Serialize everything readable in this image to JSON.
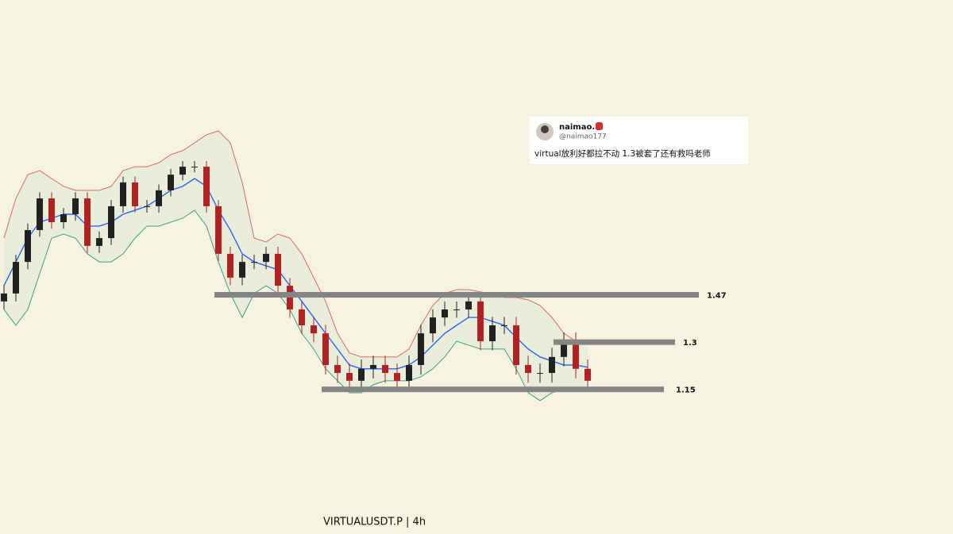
{
  "chart_data": {
    "type": "candlestick",
    "title": "VIRTUALUSDT.P | 4h",
    "log_scale": true,
    "ylim": [
      0.79,
      3.16
    ],
    "up_color": "#222222",
    "down_color": "#b22222",
    "open": [
      1.445,
      1.475,
      1.601,
      1.739,
      1.888,
      1.775,
      1.812,
      1.888,
      1.669,
      1.703,
      1.85,
      1.968,
      1.85,
      1.85,
      1.928,
      2.008,
      2.05,
      2.05,
      1.85,
      1.635,
      1.537,
      1.601,
      1.601,
      1.635,
      1.505,
      1.415,
      1.358,
      1.33,
      1.225,
      1.2,
      1.176,
      1.213,
      1.225,
      1.2,
      1.176,
      1.225,
      1.33,
      1.386,
      1.415,
      1.415,
      1.445,
      1.303,
      1.358,
      1.358,
      1.225,
      1.2,
      1.2,
      1.251,
      1.303,
      1.213
    ],
    "high": [
      1.505,
      1.631,
      1.769,
      1.918,
      1.918,
      1.842,
      1.918,
      1.918,
      1.733,
      1.88,
      1.998,
      1.998,
      1.88,
      1.958,
      2.038,
      2.08,
      2.08,
      2.08,
      1.88,
      1.665,
      1.631,
      1.631,
      1.665,
      1.665,
      1.535,
      1.445,
      1.388,
      1.36,
      1.255,
      1.23,
      1.243,
      1.255,
      1.255,
      1.23,
      1.255,
      1.36,
      1.416,
      1.445,
      1.445,
      1.475,
      1.475,
      1.388,
      1.388,
      1.388,
      1.255,
      1.23,
      1.281,
      1.333,
      1.333,
      1.243
    ],
    "low": [
      1.415,
      1.445,
      1.571,
      1.709,
      1.745,
      1.745,
      1.782,
      1.639,
      1.639,
      1.673,
      1.82,
      1.82,
      1.82,
      1.82,
      1.898,
      1.978,
      2.02,
      1.82,
      1.605,
      1.507,
      1.507,
      1.571,
      1.571,
      1.475,
      1.385,
      1.328,
      1.3,
      1.195,
      1.17,
      1.146,
      1.146,
      1.183,
      1.17,
      1.146,
      1.146,
      1.195,
      1.3,
      1.356,
      1.385,
      1.385,
      1.273,
      1.273,
      1.328,
      1.195,
      1.17,
      1.17,
      1.17,
      1.221,
      1.183,
      1.146
    ],
    "close": [
      1.475,
      1.601,
      1.739,
      1.888,
      1.775,
      1.812,
      1.888,
      1.669,
      1.703,
      1.85,
      1.968,
      1.85,
      1.85,
      1.928,
      2.008,
      2.05,
      2.05,
      1.85,
      1.635,
      1.537,
      1.601,
      1.601,
      1.635,
      1.505,
      1.415,
      1.358,
      1.33,
      1.225,
      1.2,
      1.176,
      1.213,
      1.225,
      1.2,
      1.176,
      1.225,
      1.33,
      1.386,
      1.415,
      1.415,
      1.445,
      1.303,
      1.358,
      1.358,
      1.225,
      1.2,
      1.2,
      1.251,
      1.303,
      1.213,
      1.176
    ],
    "bands": {
      "fill": "#e9eedb",
      "middle": {
        "color": "#2962ff",
        "values": [
          1.505,
          1.601,
          1.703,
          1.775,
          1.793,
          1.812,
          1.812,
          1.757,
          1.757,
          1.775,
          1.812,
          1.831,
          1.85,
          1.888,
          1.928,
          1.948,
          1.988,
          1.948,
          1.831,
          1.739,
          1.635,
          1.601,
          1.585,
          1.569,
          1.505,
          1.445,
          1.386,
          1.33,
          1.277,
          1.225,
          1.213,
          1.213,
          1.213,
          1.213,
          1.225,
          1.251,
          1.29,
          1.33,
          1.358,
          1.386,
          1.386,
          1.372,
          1.358,
          1.316,
          1.277,
          1.251,
          1.238,
          1.225,
          1.225,
          1.218
        ]
      },
      "upper": {
        "color": "#e06666",
        "values": [
          1.703,
          1.888,
          2.008,
          2.029,
          1.988,
          1.948,
          1.928,
          1.928,
          1.928,
          1.948,
          2.029,
          2.05,
          2.05,
          2.071,
          2.115,
          2.137,
          2.181,
          2.227,
          2.25,
          2.181,
          1.968,
          1.703,
          1.686,
          1.721,
          1.703,
          1.635,
          1.537,
          1.445,
          1.33,
          1.264,
          1.251,
          1.251,
          1.251,
          1.251,
          1.277,
          1.358,
          1.43,
          1.475,
          1.49,
          1.49,
          1.481,
          1.475,
          1.46,
          1.46,
          1.451,
          1.43,
          1.386,
          1.33,
          1.303,
          1.303
        ]
      },
      "lower": {
        "color": "#3f9f7f",
        "values": [
          1.415,
          1.358,
          1.415,
          1.553,
          1.703,
          1.721,
          1.703,
          1.635,
          1.601,
          1.601,
          1.635,
          1.703,
          1.757,
          1.757,
          1.775,
          1.793,
          1.831,
          1.757,
          1.601,
          1.475,
          1.386,
          1.475,
          1.505,
          1.475,
          1.415,
          1.33,
          1.277,
          1.213,
          1.176,
          1.14,
          1.14,
          1.164,
          1.176,
          1.176,
          1.176,
          1.188,
          1.213,
          1.251,
          1.303,
          1.29,
          1.277,
          1.277,
          1.277,
          1.213,
          1.14,
          1.117,
          1.14,
          1.152,
          1.152,
          1.147
        ]
      }
    },
    "levels": [
      1.47,
      1.3,
      1.15
    ],
    "level_color": "#858585"
  },
  "tweet": {
    "name": "naimao.hl",
    "handle": "@naimao177",
    "text": "virtual放利好都拉不动 1.3被套了还有救吗老师"
  }
}
